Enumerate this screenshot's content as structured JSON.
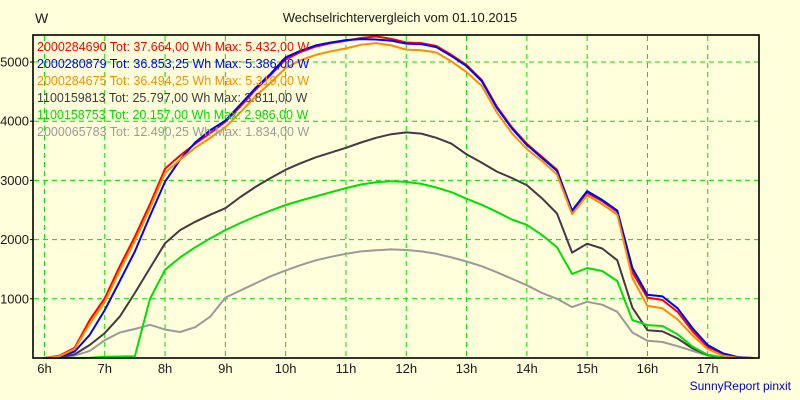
{
  "title": "Wechselrichtervergleich vom 01.10.2015",
  "y_unit": "W",
  "credit": "SunnyReport pinxit",
  "colors": {
    "background": "#FFFFDC",
    "grid": "#00DC00",
    "axis": "#000000",
    "title_text": "#1A1A1A",
    "credit_text": "#0000C0"
  },
  "legend": [
    {
      "id": "2000284690",
      "label": "2000284690 Tot: 37.664,00 Wh Max: 5.432,00 W",
      "color": "#FF0000"
    },
    {
      "id": "2000280879",
      "label": "2000280879 Tot: 36.853,25 Wh Max: 5.386,00 W",
      "color": "#0000FF"
    },
    {
      "id": "2000284675",
      "label": "2000284675 Tot: 36.494,25 Wh Max: 5.319,00 W",
      "color": "#FF8C00"
    },
    {
      "id": "1100159813",
      "label": "1100159813 Tot: 25.797,00 Wh Max: 3.811,00 W",
      "color": "#3C3C3C"
    },
    {
      "id": "1100158753",
      "label": "1100158753 Tot: 20.157,00 Wh Max: 2.986,00 W",
      "color": "#00DC00"
    },
    {
      "id": "2000065783",
      "label": "2000065783 Tot: 12.490,25 Wh Max: 1.834,00 W",
      "color": "#9A9A9A"
    }
  ],
  "chart_data": {
    "type": "line",
    "title": "Wechselrichtervergleich vom 01.10.2015",
    "xlabel": "time of day (hours)",
    "ylabel": "W",
    "grid": true,
    "legend_position": "top-left",
    "xlim": [
      5.81,
      17.85
    ],
    "ylim": [
      0,
      5456
    ],
    "x_ticks": [
      6,
      7,
      8,
      9,
      10,
      11,
      12,
      13,
      14,
      15,
      16,
      17
    ],
    "x_tick_labels": [
      "6h",
      "7h",
      "8h",
      "9h",
      "10h",
      "11h",
      "12h",
      "13h",
      "14h",
      "15h",
      "16h",
      "17h"
    ],
    "y_ticks": [
      1000,
      2000,
      3000,
      4000,
      5000
    ],
    "y_tick_labels": [
      "1000",
      "2000",
      "3000",
      "4000",
      "5000"
    ],
    "x": [
      6.0,
      6.25,
      6.5,
      6.75,
      7.0,
      7.25,
      7.5,
      7.75,
      8.0,
      8.25,
      8.5,
      8.75,
      9.0,
      9.25,
      9.5,
      9.75,
      10.0,
      10.25,
      10.5,
      10.75,
      11.0,
      11.25,
      11.5,
      11.75,
      12.0,
      12.25,
      12.5,
      12.75,
      13.0,
      13.25,
      13.5,
      13.75,
      14.0,
      14.25,
      14.5,
      14.75,
      15.0,
      15.25,
      15.5,
      15.75,
      16.0,
      16.25,
      16.5,
      16.75,
      17.0,
      17.25,
      17.5,
      17.75
    ],
    "series": [
      {
        "name": "2000284690",
        "color": "#FF0000",
        "total_wh": "37.664,00",
        "max_w": "5.432,00",
        "values": [
          0,
          40,
          170,
          640,
          1010,
          1550,
          2050,
          2600,
          3200,
          3420,
          3620,
          3800,
          3990,
          4250,
          4530,
          4780,
          5040,
          5170,
          5260,
          5320,
          5360,
          5405,
          5432,
          5390,
          5330,
          5320,
          5270,
          5120,
          4950,
          4700,
          4250,
          3900,
          3620,
          3400,
          3180,
          2470,
          2790,
          2650,
          2470,
          1450,
          1020,
          980,
          780,
          450,
          190,
          60,
          10,
          0
        ]
      },
      {
        "name": "2000280879",
        "color": "#0000FF",
        "total_wh": "36.853,25",
        "max_w": "5.386,00",
        "values": [
          0,
          20,
          110,
          390,
          810,
          1300,
          1800,
          2400,
          2980,
          3350,
          3640,
          3850,
          4010,
          4280,
          4560,
          4800,
          5080,
          5190,
          5280,
          5330,
          5370,
          5386,
          5380,
          5360,
          5310,
          5300,
          5250,
          5100,
          4930,
          4680,
          4230,
          3880,
          3600,
          3380,
          3160,
          2490,
          2820,
          2670,
          2490,
          1520,
          1070,
          1040,
          840,
          500,
          220,
          80,
          15,
          0
        ]
      },
      {
        "name": "2000284675",
        "color": "#FF8C00",
        "total_wh": "36.494,25",
        "max_w": "5.319,00",
        "values": [
          0,
          30,
          150,
          580,
          950,
          1480,
          1980,
          2530,
          3130,
          3350,
          3550,
          3720,
          3900,
          4150,
          4420,
          4650,
          4900,
          5030,
          5120,
          5180,
          5230,
          5290,
          5319,
          5280,
          5210,
          5200,
          5160,
          5010,
          4830,
          4600,
          4150,
          3800,
          3530,
          3330,
          3100,
          2430,
          2750,
          2600,
          2420,
          1350,
          880,
          840,
          650,
          380,
          150,
          40,
          5,
          0
        ]
      },
      {
        "name": "1100159813",
        "color": "#463646",
        "total_wh": "25.797,00",
        "max_w": "3.811,00",
        "values": [
          0,
          10,
          60,
          220,
          420,
          700,
          1100,
          1520,
          1940,
          2160,
          2300,
          2420,
          2530,
          2720,
          2890,
          3040,
          3180,
          3290,
          3390,
          3470,
          3550,
          3640,
          3720,
          3780,
          3811,
          3790,
          3720,
          3620,
          3440,
          3300,
          3150,
          3040,
          2920,
          2700,
          2440,
          1780,
          1930,
          1850,
          1650,
          850,
          470,
          450,
          330,
          160,
          50,
          10,
          0,
          0
        ]
      },
      {
        "name": "1100158753",
        "color": "#00E000",
        "total_wh": "20.157,00",
        "max_w": "2.986,00",
        "values": [
          0,
          0,
          0,
          5,
          20,
          25,
          30,
          1000,
          1490,
          1700,
          1870,
          2020,
          2160,
          2280,
          2390,
          2490,
          2585,
          2660,
          2730,
          2800,
          2870,
          2930,
          2970,
          2986,
          2975,
          2940,
          2880,
          2800,
          2690,
          2590,
          2470,
          2340,
          2250,
          2080,
          1870,
          1420,
          1520,
          1470,
          1300,
          640,
          555,
          540,
          400,
          190,
          55,
          10,
          0,
          0
        ]
      },
      {
        "name": "2000065783",
        "color": "#9A9A9A",
        "total_wh": "12.490,25",
        "max_w": "1.834,00",
        "values": [
          0,
          5,
          40,
          120,
          300,
          430,
          490,
          560,
          480,
          440,
          520,
          700,
          1020,
          1140,
          1260,
          1380,
          1480,
          1570,
          1650,
          1710,
          1760,
          1800,
          1820,
          1834,
          1825,
          1800,
          1760,
          1700,
          1630,
          1550,
          1450,
          1340,
          1230,
          1100,
          1000,
          860,
          950,
          900,
          780,
          430,
          290,
          270,
          200,
          120,
          40,
          10,
          0,
          0
        ]
      }
    ]
  }
}
